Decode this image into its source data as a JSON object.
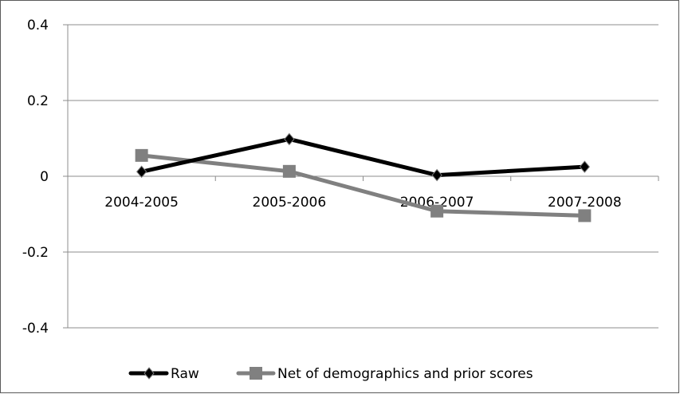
{
  "chart_data": {
    "type": "line",
    "categories": [
      "2004-2005",
      "2005-2006",
      "2006-2007",
      "2007-2008"
    ],
    "series": [
      {
        "name": "Raw",
        "values": [
          0.012,
          0.098,
          0.003,
          0.025
        ],
        "color": "#000000",
        "marker": "diamond"
      },
      {
        "name": "Net of demographics and prior scores",
        "values": [
          0.055,
          0.013,
          -0.092,
          -0.104
        ],
        "color": "#808080",
        "marker": "square"
      }
    ],
    "yticks": [
      "0.4",
      "0.2",
      "0",
      "-0.2",
      "-0.4"
    ],
    "ylim": [
      -0.4,
      0.4
    ],
    "grid": true,
    "legend_position": "bottom",
    "title": "",
    "xlabel": "",
    "ylabel": ""
  }
}
